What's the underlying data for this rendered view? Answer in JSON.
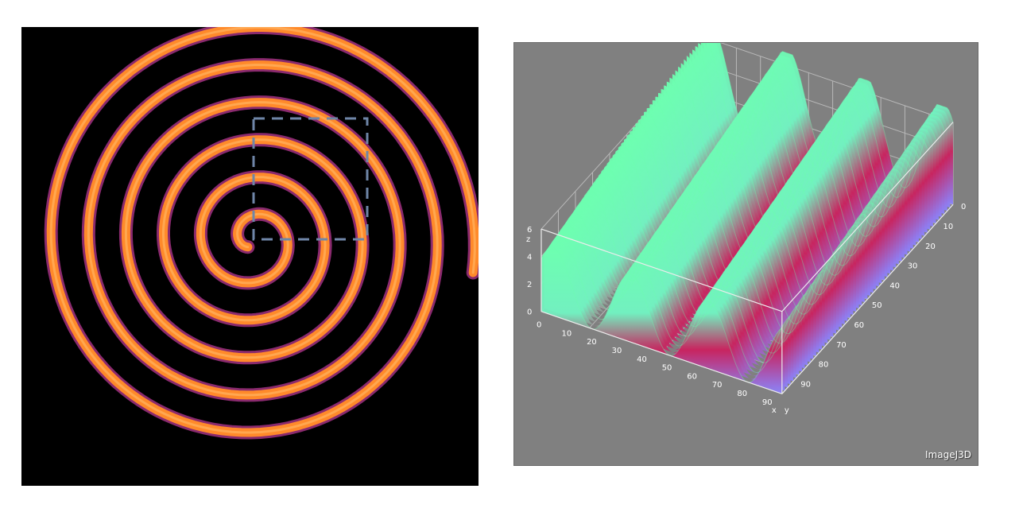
{
  "spiral_view": {
    "background": "#000000",
    "band_outer_color": "#8a2a6e",
    "band_inner_color": "#ff8a2a",
    "band_core_color": "#ffc070",
    "roi_color": "#6f86a8"
  },
  "surface_view": {
    "background": "#808080",
    "watermark": "ImageJ3D",
    "x_axis_label": "x",
    "y_axis_label": "y",
    "z_axis_label": "z",
    "x_ticks": [
      "0",
      "10",
      "20",
      "30",
      "40",
      "50",
      "60",
      "70",
      "80",
      "90"
    ],
    "y_ticks": [
      "0",
      "10",
      "20",
      "30",
      "40",
      "50",
      "60",
      "70",
      "80",
      "90"
    ],
    "z_ticks": [
      "0",
      "2",
      "4",
      "6"
    ],
    "colors": {
      "low": "#8a85ff",
      "mid": "#c8245f",
      "high": "#6dffb0"
    }
  }
}
